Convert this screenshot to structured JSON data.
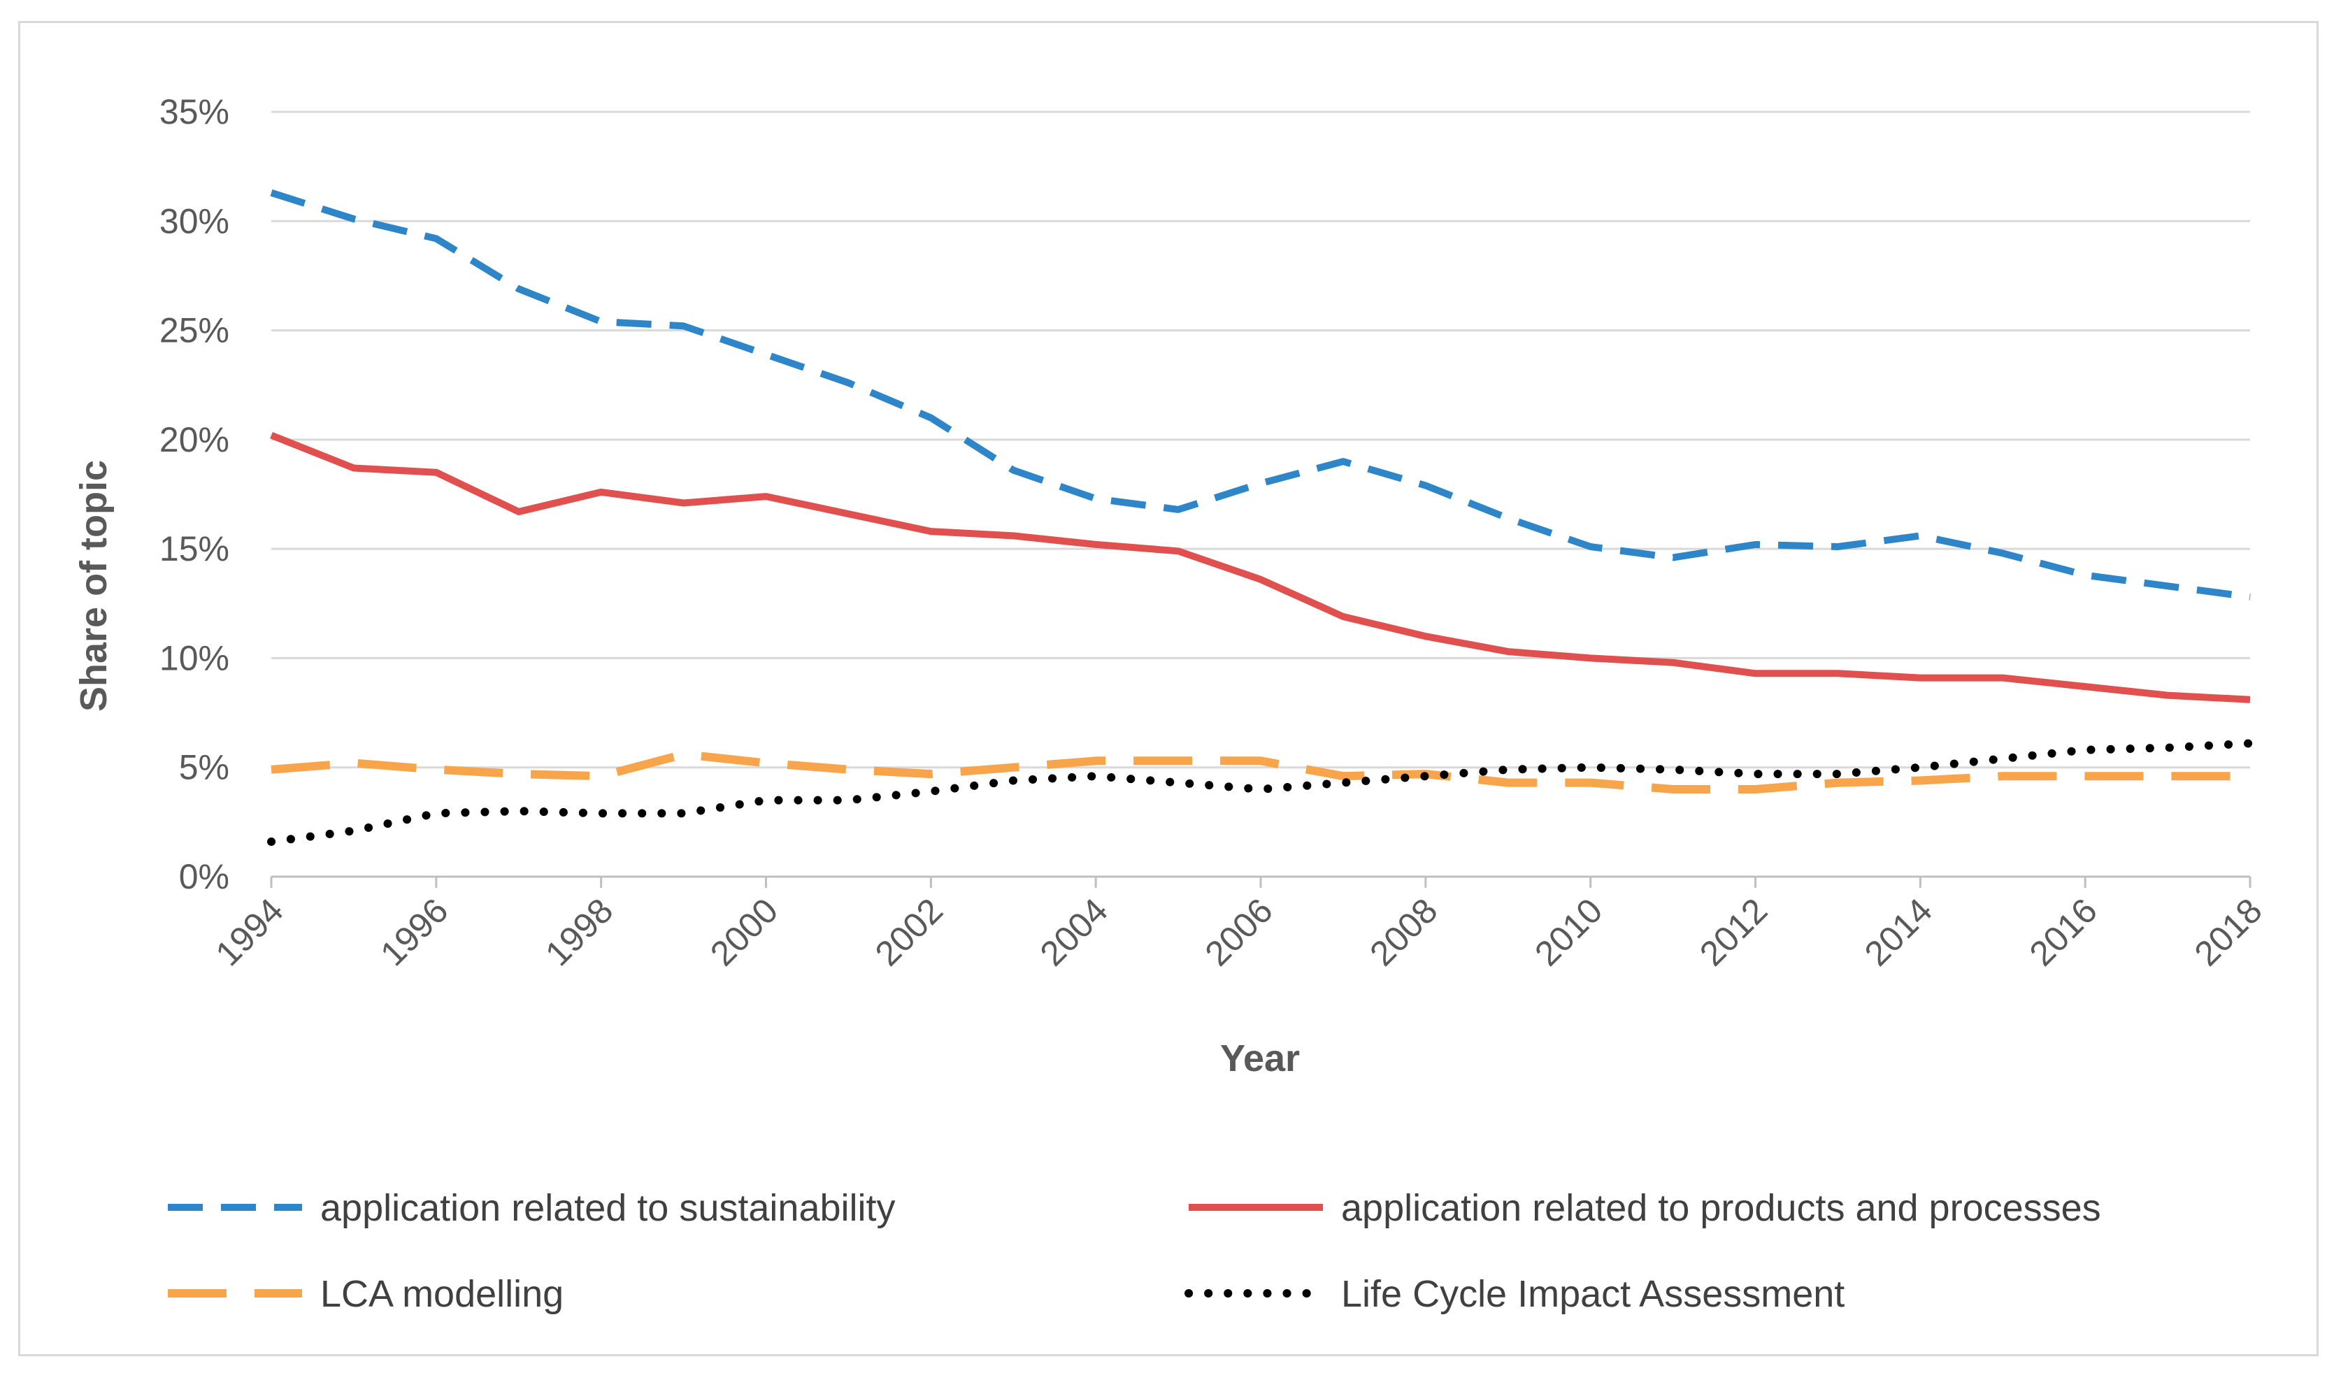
{
  "chart_data": {
    "type": "line",
    "title": "",
    "xlabel": "Year",
    "ylabel": "Share of topic",
    "x": [
      1994,
      1995,
      1996,
      1997,
      1998,
      1999,
      2000,
      2001,
      2002,
      2003,
      2004,
      2005,
      2006,
      2007,
      2008,
      2009,
      2010,
      2011,
      2012,
      2013,
      2014,
      2015,
      2016,
      2017,
      2018
    ],
    "xticks": [
      "1994",
      "1996",
      "1998",
      "2000",
      "2002",
      "2004",
      "2006",
      "2008",
      "2010",
      "2012",
      "2014",
      "2016",
      "2018"
    ],
    "yticks": [
      "0%",
      "5%",
      "10%",
      "15%",
      "20%",
      "25%",
      "30%",
      "35%"
    ],
    "ylim": [
      0,
      35
    ],
    "grid": true,
    "legend_position": "bottom",
    "series": [
      {
        "name": "application related to sustainability",
        "color": "#2e86c8",
        "style": "dashed",
        "values": [
          31.3,
          30.1,
          29.2,
          26.9,
          25.4,
          25.2,
          23.9,
          22.6,
          21.0,
          18.6,
          17.3,
          16.8,
          18.0,
          19.0,
          17.9,
          16.4,
          15.1,
          14.6,
          15.2,
          15.1,
          15.6,
          14.8,
          13.8,
          13.3,
          12.8
        ]
      },
      {
        "name": "application related to products and processes",
        "color": "#e0504e",
        "style": "solid",
        "values": [
          20.2,
          18.7,
          18.5,
          16.7,
          17.6,
          17.1,
          17.4,
          16.6,
          15.8,
          15.6,
          15.2,
          14.9,
          13.6,
          11.9,
          11.0,
          10.3,
          10.0,
          9.8,
          9.3,
          9.3,
          9.1,
          9.1,
          8.7,
          8.3,
          8.1
        ]
      },
      {
        "name": "LCA modelling",
        "color": "#f7a44a",
        "style": "longdash",
        "values": [
          4.9,
          5.2,
          4.9,
          4.7,
          4.6,
          5.6,
          5.2,
          4.9,
          4.7,
          5.0,
          5.3,
          5.3,
          5.3,
          4.6,
          4.7,
          4.3,
          4.3,
          4.0,
          4.0,
          4.3,
          4.4,
          4.6,
          4.6,
          4.6,
          4.6
        ]
      },
      {
        "name": "Life Cycle Impact Assessment",
        "color": "#000000",
        "style": "dotted",
        "values": [
          1.6,
          2.1,
          2.9,
          3.0,
          2.9,
          2.9,
          3.5,
          3.5,
          3.9,
          4.4,
          4.6,
          4.3,
          4.0,
          4.3,
          4.6,
          4.9,
          5.0,
          4.9,
          4.7,
          4.7,
          5.0,
          5.4,
          5.8,
          5.9,
          6.1
        ]
      }
    ]
  }
}
